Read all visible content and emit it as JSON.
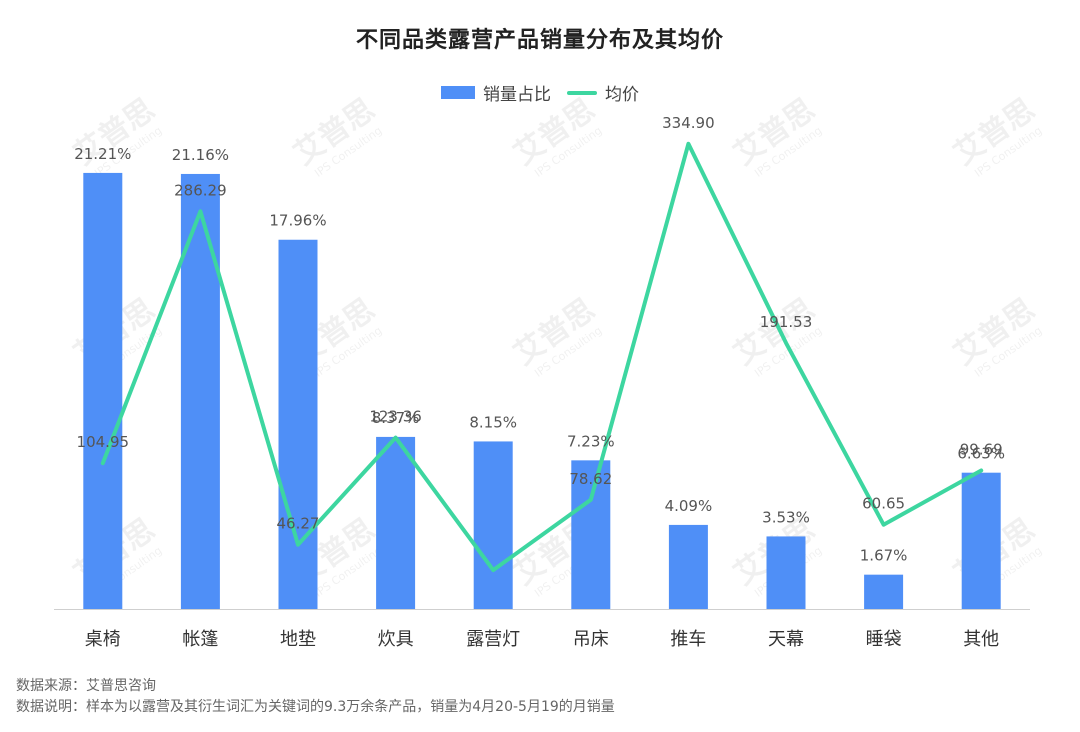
{
  "chart_data": {
    "type": "bar",
    "title": "不同品类露营产品销量分布及其均价",
    "categories": [
      "桌椅",
      "帐篷",
      "地垫",
      "炊具",
      "露营灯",
      "吊床",
      "推车",
      "天幕",
      "睡袋",
      "其他"
    ],
    "series": [
      {
        "name": "销量占比",
        "type": "bar",
        "axis": "left",
        "values": [
          21.21,
          21.16,
          17.96,
          8.37,
          8.15,
          7.23,
          4.09,
          3.53,
          1.67,
          6.63
        ],
        "labels": [
          "21.21%",
          "21.16%",
          "17.96%",
          "8.37%",
          "8.15%",
          "7.23%",
          "4.09%",
          "3.53%",
          "1.67%",
          "6.63%"
        ],
        "color": "#4f8ff7"
      },
      {
        "name": "均价",
        "type": "line",
        "axis": "right",
        "values": [
          104.95,
          286.29,
          46.27,
          123.36,
          28.0,
          78.62,
          334.9,
          191.53,
          60.65,
          99.69
        ],
        "labels": [
          "104.95",
          "286.29",
          "46.27",
          "123.36",
          "",
          "78.62",
          "334.90",
          "191.53",
          "60.65",
          "99.69"
        ],
        "color": "#3dd6a0"
      }
    ],
    "left_axis_range": [
      0,
      25
    ],
    "right_axis_range": [
      0,
      370
    ],
    "grid": false,
    "legend_position": "top-center"
  },
  "footer": {
    "source": "数据来源：艾普思咨询",
    "note": "数据说明：样本为以露营及其衍生词汇为关键词的9.3万余条产品，销量为4月20-5月19的月销量"
  },
  "watermark": {
    "brand": "艾普思",
    "sub": "IPS Consulting"
  }
}
